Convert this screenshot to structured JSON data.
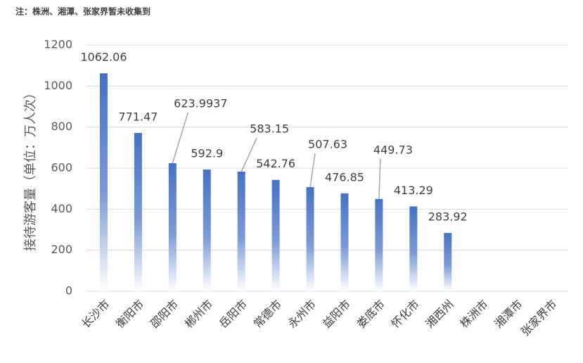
{
  "note": "注：株洲、湘潭、张家界暂未收集到",
  "chart_data": {
    "type": "bar",
    "y_label": "接待游客量（单位：万人次）",
    "categories": [
      "长沙市",
      "衡阳市",
      "邵阳市",
      "郴州市",
      "岳阳市",
      "常德市",
      "永州市",
      "益阳市",
      "娄底市",
      "怀化市",
      "湘西州",
      "株洲市",
      "湘潭市",
      "张家界市"
    ],
    "values": [
      1062.06,
      771.47,
      623.9937,
      592.9,
      583.15,
      542.76,
      507.63,
      476.85,
      449.73,
      413.29,
      283.92,
      null,
      null,
      null
    ],
    "color": "#4472c4",
    "ylim": [
      0,
      1200
    ],
    "yticks": [
      0,
      200,
      400,
      600,
      800,
      1000,
      1200
    ],
    "grid": true
  }
}
